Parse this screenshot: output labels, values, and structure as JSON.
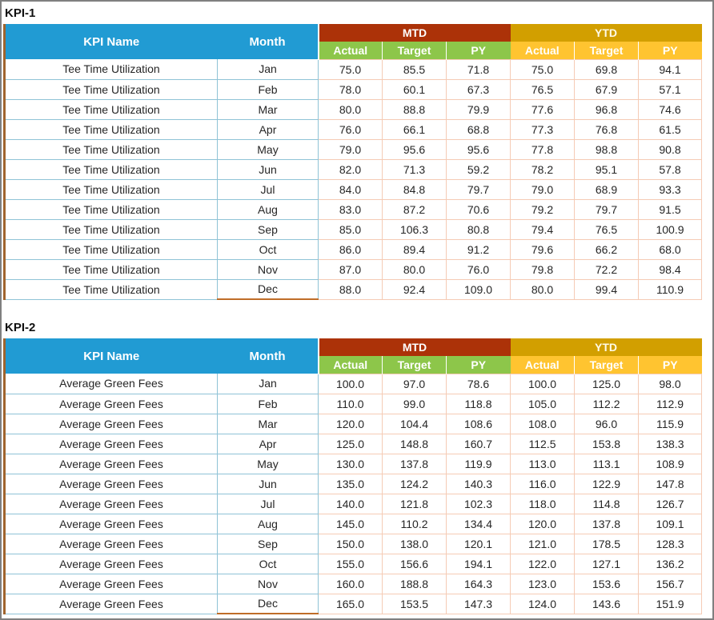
{
  "window": {
    "background": "#FFFFFF",
    "border_color": "#808080"
  },
  "colors": {
    "header_blue": "#219BD3",
    "mtd_red": "#AC3208",
    "ytd_gold": "#D29F00",
    "mtd_sub_green": "#8DC64A",
    "ytd_sub_yellow": "#FFC430",
    "border_light_blue": "#8FC3D6",
    "border_light_pink": "#F5CBB5",
    "border_left_brown": "#A0642E",
    "border_dec_orange": "#BF6D28",
    "window_border": "#808080",
    "window_bg": "#FFFFFF"
  },
  "header": {
    "kpi_name_label": "KPI Name",
    "month_label": "Month",
    "mtd_label": "MTD",
    "ytd_label": "YTD",
    "sub_labels": [
      "Actual",
      "Target",
      "PY"
    ]
  },
  "tables": [
    {
      "title": "KPI-1",
      "kpi_name": "Tee Time Utilization",
      "columns": [
        "KPI Name",
        "Month",
        "MTD Actual",
        "MTD Target",
        "MTD PY",
        "YTD Actual",
        "YTD Target",
        "YTD PY"
      ],
      "rows": [
        {
          "month": "Jan",
          "values": [
            "75.0",
            "85.5",
            "71.8",
            "75.0",
            "69.8",
            "94.1"
          ]
        },
        {
          "month": "Feb",
          "values": [
            "78.0",
            "60.1",
            "67.3",
            "76.5",
            "67.9",
            "57.1"
          ]
        },
        {
          "month": "Mar",
          "values": [
            "80.0",
            "88.8",
            "79.9",
            "77.6",
            "96.8",
            "74.6"
          ]
        },
        {
          "month": "Apr",
          "values": [
            "76.0",
            "66.1",
            "68.8",
            "77.3",
            "76.8",
            "61.5"
          ]
        },
        {
          "month": "May",
          "values": [
            "79.0",
            "95.6",
            "95.6",
            "77.8",
            "98.8",
            "90.8"
          ]
        },
        {
          "month": "Jun",
          "values": [
            "82.0",
            "71.3",
            "59.2",
            "78.2",
            "95.1",
            "57.8"
          ]
        },
        {
          "month": "Jul",
          "values": [
            "84.0",
            "84.8",
            "79.7",
            "79.0",
            "68.9",
            "93.3"
          ]
        },
        {
          "month": "Aug",
          "values": [
            "83.0",
            "87.2",
            "70.6",
            "79.2",
            "79.7",
            "91.5"
          ]
        },
        {
          "month": "Sep",
          "values": [
            "85.0",
            "106.3",
            "80.8",
            "79.4",
            "76.5",
            "100.9"
          ]
        },
        {
          "month": "Oct",
          "values": [
            "86.0",
            "89.4",
            "91.2",
            "79.6",
            "66.2",
            "68.0"
          ]
        },
        {
          "month": "Nov",
          "values": [
            "87.0",
            "80.0",
            "76.0",
            "79.8",
            "72.2",
            "98.4"
          ]
        },
        {
          "month": "Dec",
          "values": [
            "88.0",
            "92.4",
            "109.0",
            "80.0",
            "99.4",
            "110.9"
          ]
        }
      ]
    },
    {
      "title": "KPI-2",
      "kpi_name": "Average Green Fees",
      "columns": [
        "KPI Name",
        "Month",
        "MTD Actual",
        "MTD Target",
        "MTD PY",
        "YTD Actual",
        "YTD Target",
        "YTD PY"
      ],
      "rows": [
        {
          "month": "Jan",
          "values": [
            "100.0",
            "97.0",
            "78.6",
            "100.0",
            "125.0",
            "98.0"
          ]
        },
        {
          "month": "Feb",
          "values": [
            "110.0",
            "99.0",
            "118.8",
            "105.0",
            "112.2",
            "112.9"
          ]
        },
        {
          "month": "Mar",
          "values": [
            "120.0",
            "104.4",
            "108.6",
            "108.0",
            "96.0",
            "115.9"
          ]
        },
        {
          "month": "Apr",
          "values": [
            "125.0",
            "148.8",
            "160.7",
            "112.5",
            "153.8",
            "138.3"
          ]
        },
        {
          "month": "May",
          "values": [
            "130.0",
            "137.8",
            "119.9",
            "113.0",
            "113.1",
            "108.9"
          ]
        },
        {
          "month": "Jun",
          "values": [
            "135.0",
            "124.2",
            "140.3",
            "116.0",
            "122.9",
            "147.8"
          ]
        },
        {
          "month": "Jul",
          "values": [
            "140.0",
            "121.8",
            "102.3",
            "118.0",
            "114.8",
            "126.7"
          ]
        },
        {
          "month": "Aug",
          "values": [
            "145.0",
            "110.2",
            "134.4",
            "120.0",
            "137.8",
            "109.1"
          ]
        },
        {
          "month": "Sep",
          "values": [
            "150.0",
            "138.0",
            "120.1",
            "121.0",
            "178.5",
            "128.3"
          ]
        },
        {
          "month": "Oct",
          "values": [
            "155.0",
            "156.6",
            "194.1",
            "122.0",
            "127.1",
            "136.2"
          ]
        },
        {
          "month": "Nov",
          "values": [
            "160.0",
            "188.8",
            "164.3",
            "123.0",
            "153.6",
            "156.7"
          ]
        },
        {
          "month": "Dec",
          "values": [
            "165.0",
            "153.5",
            "147.3",
            "124.0",
            "143.6",
            "151.9"
          ]
        }
      ]
    }
  ]
}
